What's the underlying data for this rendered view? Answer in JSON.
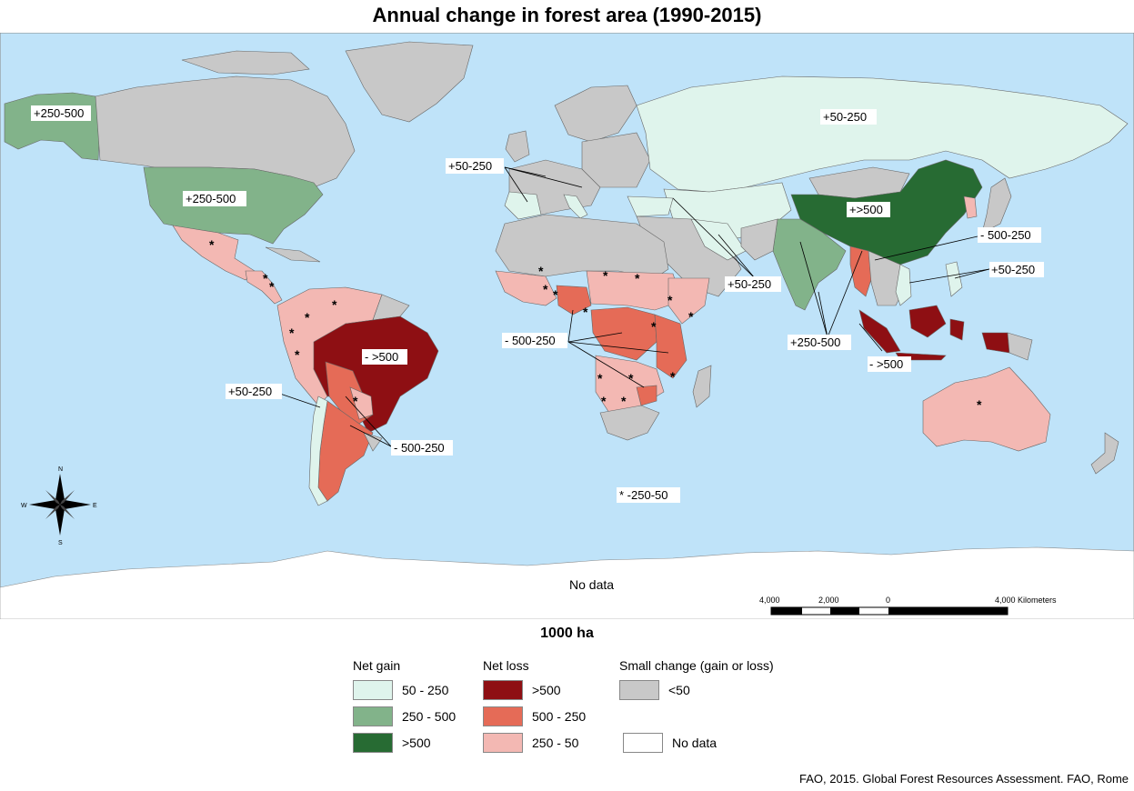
{
  "title": "Annual change in forest area (1990-2015)",
  "unit_label": "1000 ha",
  "colors": {
    "ocean": "#bfe3f9",
    "gain_low": "#dff4ec",
    "gain_mid": "#82b38a",
    "gain_high": "#276b33",
    "loss_high": "#8e0f13",
    "loss_mid": "#e56b57",
    "loss_low": "#f3b8b3",
    "small": "#c8c8c8",
    "nodata": "#ffffff"
  },
  "map_labels": {
    "alaska": "+250-500",
    "usa": "+250-500",
    "russia": "+50-250",
    "europe": "+50-250",
    "china": "+>500",
    "myanmar": "- 500-250",
    "vietnam": "+50-250",
    "middle_east": "+50-250",
    "india": "+250-500",
    "indonesia": "- >500",
    "brazil": "- >500",
    "chile": "+50-250",
    "argentina": "- 500-250",
    "africa": "- 500-250",
    "small_loss_note": "* -250-50",
    "antarctica": "No data"
  },
  "compass": {
    "n": "N",
    "s": "S",
    "e": "E",
    "w": "W"
  },
  "scale_bar": {
    "ticks": [
      "4,000",
      "2,000",
      "0",
      "4,000 Kilometers"
    ]
  },
  "legend": {
    "net_gain": {
      "title": "Net gain",
      "items": [
        "50 - 250",
        "250 - 500",
        ">500"
      ]
    },
    "net_loss": {
      "title": "Net loss",
      "items": [
        ">500",
        "500 - 250",
        "250 - 50"
      ]
    },
    "small_change": {
      "title": "Small change (gain or loss)",
      "items": [
        "<50"
      ]
    },
    "no_data": "No data"
  },
  "source": "FAO, 2015. Global Forest Resources Assessment. FAO, Rome"
}
